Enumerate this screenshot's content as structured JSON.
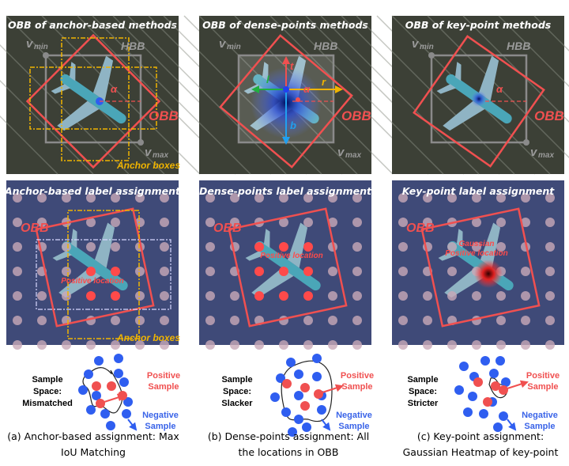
{
  "colors": {
    "obb": "#f05050",
    "hbb": "#8a8a8a",
    "anchor": "#f0b400",
    "positive": "#f05050",
    "negative": "#2f5ef0",
    "aerial": "#3c4036",
    "grid_bg": "#3f4a78"
  },
  "panels_top": [
    {
      "title": "OBB of anchor-based methods",
      "vmin": "v",
      "vmin_sub": "min",
      "hbb": "HBB",
      "obb": "OBB",
      "vmax": "v",
      "vmax_sub": "max",
      "angle": "α",
      "anchor": "Anchor boxes"
    },
    {
      "title": "OBB of dense-points methods",
      "vmin": "v",
      "vmin_sub": "min",
      "hbb": "HBB",
      "obb": "OBB",
      "vmax": "v",
      "vmax_sub": "max",
      "angle": "α",
      "t": "t",
      "l": "l",
      "r": "r",
      "b": "b"
    },
    {
      "title": "OBB of key-point methods",
      "vmin": "v",
      "vmin_sub": "min",
      "hbb": "HBB",
      "obb": "OBB",
      "vmax": "v",
      "vmax_sub": "max",
      "angle": "α"
    }
  ],
  "panels_mid": [
    {
      "title": "Anchor-based label assignment",
      "obb": "OBB",
      "positive": "Positive location",
      "anchor": "Anchor boxes"
    },
    {
      "title": "Dense-points label assignment",
      "obb": "OBB",
      "positive": "Positive location"
    },
    {
      "title": "Key-point label assignment",
      "obb": "OBB",
      "positive1": "Gaussian",
      "positive2": "Positive location"
    }
  ],
  "samples": [
    {
      "space": [
        "Sample",
        "Space:",
        "Mismatched"
      ],
      "pos": [
        "Positive",
        "Sample"
      ],
      "neg": [
        "Negative",
        "Sample"
      ]
    },
    {
      "space": [
        "Sample",
        "Space:",
        "Slacker"
      ],
      "pos": [
        "Positive",
        "Sample"
      ],
      "neg": [
        "Negative",
        "Sample"
      ]
    },
    {
      "space": [
        "Sample",
        "Space:",
        "Stricter"
      ],
      "pos": [
        "Positive",
        "Sample"
      ],
      "neg": [
        "Negative",
        "Sample"
      ]
    }
  ],
  "captions": [
    [
      "(a) Anchor-based assignment: Max",
      "IoU Matching"
    ],
    [
      "(b) Dense-points assignment: All",
      "the locations in OBB"
    ],
    [
      "(c) Key-point assignment:",
      "Gaussian Heatmap of key-point"
    ]
  ]
}
